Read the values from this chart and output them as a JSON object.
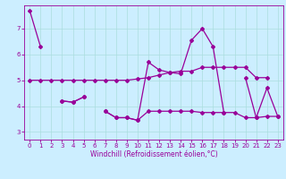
{
  "xlabel": "Windchill (Refroidissement éolien,°C)",
  "background_color": "#cceeff",
  "line_color": "#990099",
  "ylim": [
    2.7,
    7.9
  ],
  "xlim": [
    -0.5,
    23.5
  ],
  "yticks": [
    3,
    4,
    5,
    6,
    7
  ],
  "xticks": [
    0,
    1,
    2,
    3,
    4,
    5,
    6,
    7,
    8,
    9,
    10,
    11,
    12,
    13,
    14,
    15,
    16,
    17,
    18,
    19,
    20,
    21,
    22,
    23
  ],
  "lineA_y": [
    7.7,
    6.3,
    null,
    null,
    null,
    null,
    null,
    null,
    null,
    null,
    null,
    null,
    null,
    null,
    null,
    null,
    null,
    null,
    null,
    null,
    null,
    null,
    null,
    null
  ],
  "lineB_y": [
    null,
    null,
    null,
    4.2,
    4.15,
    4.35,
    null,
    3.8,
    3.55,
    3.55,
    3.45,
    5.7,
    5.4,
    5.3,
    5.25,
    6.55,
    7.0,
    6.3,
    3.75,
    null,
    5.1,
    3.55,
    4.7,
    3.6
  ],
  "lineC_y": [
    5.0,
    5.0,
    5.0,
    5.0,
    5.0,
    5.0,
    5.0,
    5.0,
    5.0,
    5.0,
    5.05,
    5.1,
    5.2,
    5.3,
    5.35,
    5.35,
    5.5,
    5.5,
    5.5,
    5.5,
    5.5,
    5.1,
    5.1,
    null
  ],
  "lineD_y": [
    null,
    null,
    null,
    4.2,
    4.15,
    4.35,
    null,
    3.8,
    3.55,
    3.55,
    3.45,
    3.8,
    3.8,
    3.8,
    3.8,
    3.8,
    3.75,
    3.75,
    3.75,
    3.75,
    3.55,
    3.55,
    3.6,
    3.6
  ]
}
